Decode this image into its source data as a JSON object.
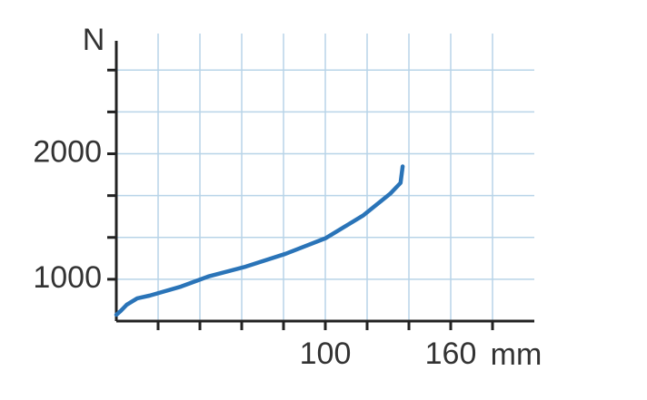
{
  "chart_data": {
    "type": "line",
    "x_label": "mm",
    "y_label": "N",
    "x": [
      0,
      2,
      5,
      10,
      16,
      31,
      44,
      62,
      81,
      100,
      118,
      131,
      136,
      137
    ],
    "series": [
      {
        "color": "#2a74b8",
        "values": [
          717,
          746,
          797,
          848,
          870,
          942,
          1022,
          1101,
          1203,
          1326,
          1507,
          1681,
          1768,
          1899
        ]
      }
    ],
    "xlim": [
      0,
      200
    ],
    "ylim": [
      666.7,
      2900
    ],
    "xticks": [
      100,
      160
    ],
    "yticks": [
      1000,
      2000
    ],
    "xminor_ticks": [
      20,
      40,
      60,
      80,
      120,
      140,
      180
    ],
    "yminor_ticks": [
      1333.3,
      1666.7,
      2333.3,
      2666.7
    ],
    "grid": true,
    "grid_color": "#b8d4e8"
  }
}
